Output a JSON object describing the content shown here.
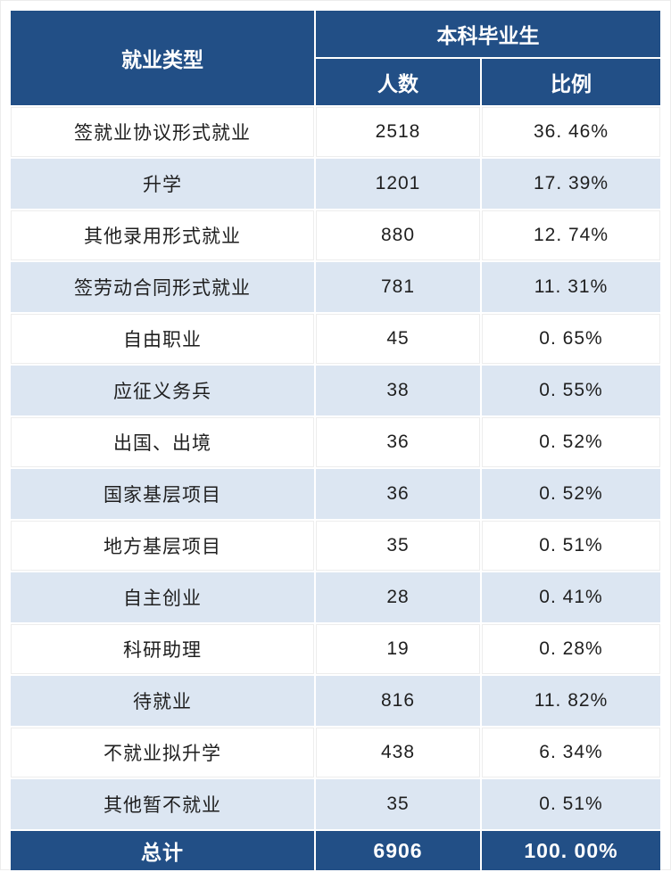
{
  "colors": {
    "header_bg": "#224F86",
    "row_alt_bg": "#DCE6F2",
    "header_text": "#FFFFFF",
    "body_text": "#1F1F1F"
  },
  "table": {
    "header": {
      "col_type": "就业类型",
      "group": "本科毕业生",
      "col_count": "人数",
      "col_ratio": "比例"
    },
    "rows": [
      {
        "type": "签就业协议形式就业",
        "count": "2518",
        "ratio": "36. 46%"
      },
      {
        "type": "升学",
        "count": "1201",
        "ratio": "17. 39%"
      },
      {
        "type": "其他录用形式就业",
        "count": "880",
        "ratio": "12. 74%"
      },
      {
        "type": "签劳动合同形式就业",
        "count": "781",
        "ratio": "11. 31%"
      },
      {
        "type": "自由职业",
        "count": "45",
        "ratio": "0. 65%"
      },
      {
        "type": "应征义务兵",
        "count": "38",
        "ratio": "0. 55%"
      },
      {
        "type": "出国、出境",
        "count": "36",
        "ratio": "0. 52%"
      },
      {
        "type": "国家基层项目",
        "count": "36",
        "ratio": "0. 52%"
      },
      {
        "type": "地方基层项目",
        "count": "35",
        "ratio": "0. 51%"
      },
      {
        "type": "自主创业",
        "count": "28",
        "ratio": "0. 41%"
      },
      {
        "type": "科研助理",
        "count": "19",
        "ratio": "0. 28%"
      },
      {
        "type": "待就业",
        "count": "816",
        "ratio": "11. 82%"
      },
      {
        "type": "不就业拟升学",
        "count": "438",
        "ratio": "6. 34%"
      },
      {
        "type": "其他暂不就业",
        "count": "35",
        "ratio": "0. 51%"
      }
    ],
    "footer": {
      "label": "总计",
      "count": "6906",
      "ratio": "100. 00%"
    }
  },
  "chart_data": {
    "type": "table",
    "columns": [
      "就业类型",
      "本科毕业生 人数",
      "本科毕业生 比例"
    ],
    "rows": [
      [
        "签就业协议形式就业",
        2518,
        "36.46%"
      ],
      [
        "升学",
        1201,
        "17.39%"
      ],
      [
        "其他录用形式就业",
        880,
        "12.74%"
      ],
      [
        "签劳动合同形式就业",
        781,
        "11.31%"
      ],
      [
        "自由职业",
        45,
        "0.65%"
      ],
      [
        "应征义务兵",
        38,
        "0.55%"
      ],
      [
        "出国、出境",
        36,
        "0.52%"
      ],
      [
        "国家基层项目",
        36,
        "0.52%"
      ],
      [
        "地方基层项目",
        35,
        "0.51%"
      ],
      [
        "自主创业",
        28,
        "0.41%"
      ],
      [
        "科研助理",
        19,
        "0.28%"
      ],
      [
        "待就业",
        816,
        "11.82%"
      ],
      [
        "不就业拟升学",
        438,
        "6.34%"
      ],
      [
        "其他暂不就业",
        35,
        "0.51%"
      ]
    ],
    "total_row": [
      "总计",
      6906,
      "100.00%"
    ]
  }
}
